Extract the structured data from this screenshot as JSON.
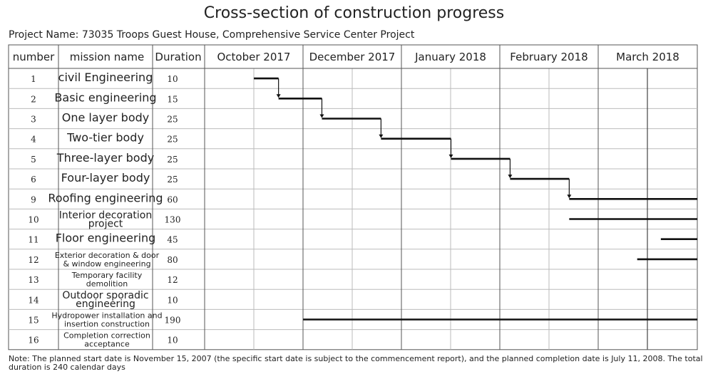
{
  "title": "Cross-section of construction progress",
  "project_name": "Project Name: 73035 Troops Guest House, Comprehensive Service Center Project",
  "note": "Note: The planned start date is November 15, 2007 (the specific start date is subject to the commencement report), and the planned completion date is July 11, 2008. The total duration is 240 calendar days",
  "chart_data": {
    "type": "gantt",
    "title": "Cross-section of construction progress",
    "columns": [
      "number",
      "mission name",
      "Duration"
    ],
    "months": [
      "October 2017",
      "December 2017",
      "January 2018",
      "February 2018",
      "March 2018"
    ],
    "tasks": [
      {
        "number": "1",
        "name": "civil Engineering",
        "duration": 10,
        "start": 0.5,
        "end": 0.75,
        "arrow_to_next": true
      },
      {
        "number": "2",
        "name": "Basic engineering",
        "duration": 15,
        "start": 0.75,
        "end": 1.19,
        "arrow_to_next": true
      },
      {
        "number": "3",
        "name": "One layer body",
        "duration": 25,
        "start": 1.19,
        "end": 1.79,
        "arrow_to_next": true
      },
      {
        "number": "4",
        "name": "Two-tier body",
        "duration": 25,
        "start": 1.79,
        "end": 2.5,
        "arrow_to_next": true
      },
      {
        "number": "5",
        "name": "Three-layer body",
        "duration": 25,
        "start": 2.5,
        "end": 3.1,
        "arrow_to_next": true
      },
      {
        "number": "6",
        "name": "Four-layer body",
        "duration": 25,
        "start": 3.1,
        "end": 3.7,
        "arrow_to_next": true
      },
      {
        "number": "9",
        "name": "Roofing engineering",
        "duration": 60,
        "start": 3.7,
        "end": 5.0,
        "arrow_to_next": false
      },
      {
        "number": "10",
        "name": "Interior decoration project",
        "duration": 130,
        "start": 3.7,
        "end": 5.0,
        "arrow_to_next": false
      },
      {
        "number": "11",
        "name": "Floor engineering",
        "duration": 45,
        "start": 4.63,
        "end": 5.0,
        "arrow_to_next": false
      },
      {
        "number": "12",
        "name": "Exterior decoration & door & window engineering",
        "duration": 80,
        "start": 4.39,
        "end": 5.0,
        "arrow_to_next": false
      },
      {
        "number": "13",
        "name": "Temporary facility demolition",
        "duration": 12,
        "start": null,
        "end": null,
        "arrow_to_next": false
      },
      {
        "number": "14",
        "name": "Outdoor sporadic engineering",
        "duration": 10,
        "start": null,
        "end": null,
        "arrow_to_next": false
      },
      {
        "number": "15",
        "name": "Hydropower installation and insertion construction",
        "duration": 190,
        "start": 1.0,
        "end": 5.0,
        "arrow_to_next": false
      },
      {
        "number": "16",
        "name": "Completion correction acceptance",
        "duration": 10,
        "start": null,
        "end": null,
        "arrow_to_next": false
      }
    ]
  }
}
